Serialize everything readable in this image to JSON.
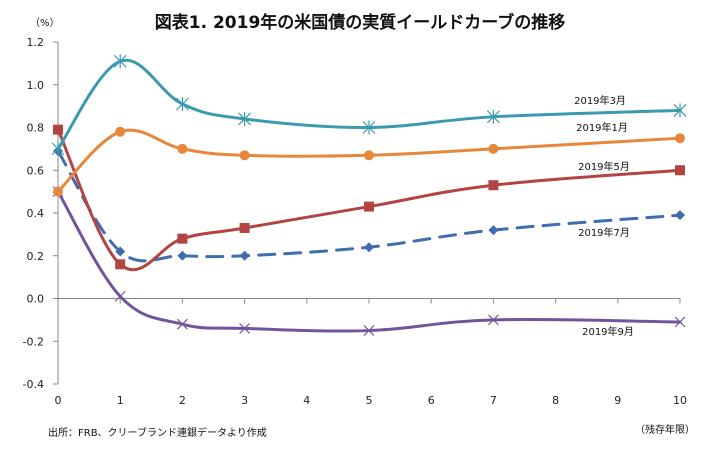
{
  "chart_data": {
    "type": "line",
    "title": "図表1. 2019年の米国債の実質イールドカーブの推移",
    "xlabel": "（残存年限）",
    "ylabel": "（%）",
    "x": [
      0,
      1,
      2,
      3,
      5,
      7,
      10
    ],
    "xlim": [
      0,
      10
    ],
    "ylim": [
      -0.4,
      1.2
    ],
    "xticks": [
      "0",
      "1",
      "2",
      "3",
      "4",
      "5",
      "6",
      "7",
      "8",
      "9",
      "10"
    ],
    "yticks": [
      "1.2",
      "1.0",
      "0.8",
      "0.6",
      "0.4",
      "0.2",
      "0.0",
      "-0.2",
      "-0.4"
    ],
    "grid": false,
    "legend": "inline labels near right end",
    "series": [
      {
        "name": "2019年3月",
        "color": "#3B9AB0",
        "marker": "asterisk",
        "dash": false,
        "values": [
          0.7,
          1.11,
          0.91,
          0.84,
          0.8,
          0.85,
          0.88
        ]
      },
      {
        "name": "2019年1月",
        "color": "#E8873A",
        "marker": "circle",
        "dash": false,
        "values": [
          0.5,
          0.78,
          0.7,
          0.67,
          0.67,
          0.7,
          0.75
        ]
      },
      {
        "name": "2019年5月",
        "color": "#B24542",
        "marker": "square",
        "dash": false,
        "values": [
          0.79,
          0.16,
          0.28,
          0.33,
          0.43,
          0.53,
          0.6
        ]
      },
      {
        "name": "2019年7月",
        "color": "#3E6EAD",
        "marker": "diamond",
        "dash": true,
        "values": [
          0.69,
          0.22,
          0.2,
          0.2,
          0.24,
          0.32,
          0.39
        ]
      },
      {
        "name": "2019年9月",
        "color": "#71559B",
        "marker": "x",
        "dash": false,
        "values": [
          0.5,
          0.01,
          -0.12,
          -0.14,
          -0.15,
          -0.1,
          -0.11
        ]
      }
    ]
  },
  "page": {
    "title": "図表1. 2019年の米国債の実質イールドカーブの推移",
    "y_unit": "（%）",
    "x_unit": "（残存年限）",
    "source": "出所：FRB、クリーブランド連銀データより作成"
  }
}
